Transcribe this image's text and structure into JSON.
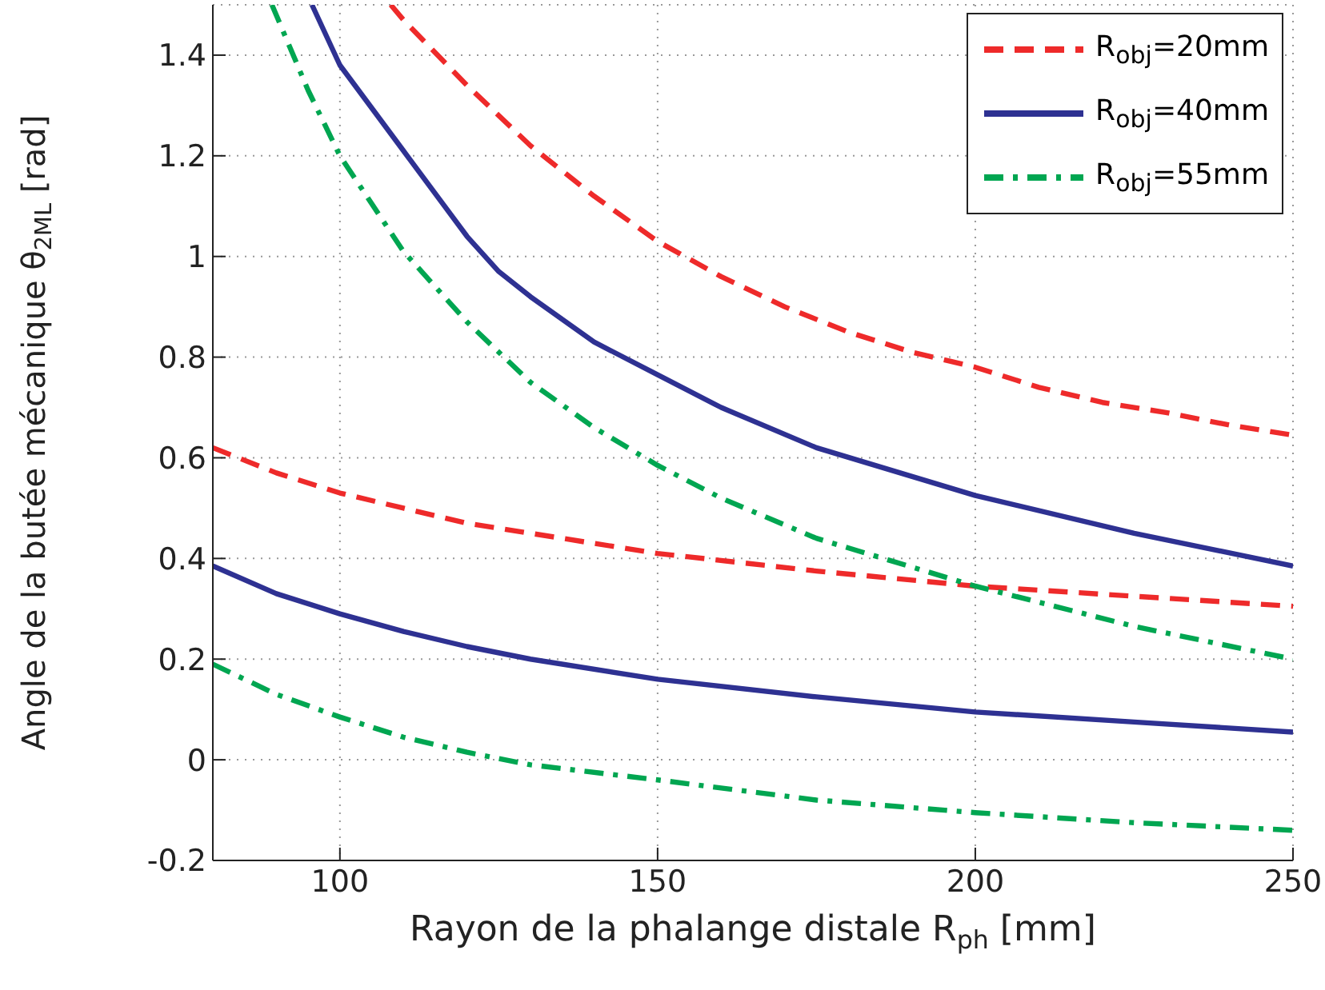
{
  "chart_data": {
    "type": "line",
    "xlabel": "Rayon de la phalange distale R$_{ph}$ [mm]",
    "ylabel": "Angle de la butée mécanique  θ$_{2ML}$ [rad]",
    "xlim": [
      80,
      250
    ],
    "xticks": [
      100,
      150,
      200,
      250
    ],
    "ylim": [
      -0.2,
      1.5
    ],
    "yticks": [
      -0.2,
      0,
      0.2,
      0.4,
      0.6,
      0.8,
      1,
      1.2,
      1.4
    ],
    "grid": true,
    "legend": "top right",
    "marker": "none",
    "series": [
      {
        "name": "R$_{obj}$=20mm",
        "color": "#ee2a2a",
        "line_style": "dashed",
        "x": [
          108,
          110,
          120,
          130,
          140,
          150,
          160,
          170,
          180,
          190,
          200,
          210,
          220,
          230,
          240,
          250
        ],
        "values": [
          1.5,
          1.47,
          1.34,
          1.22,
          1.12,
          1.03,
          0.96,
          0.9,
          0.85,
          0.81,
          0.78,
          0.74,
          0.71,
          0.69,
          0.665,
          0.645
        ]
      },
      {
        "color": "#ee2a2a",
        "line_style": "dashed",
        "x": [
          80,
          90,
          100,
          110,
          120,
          130,
          140,
          150,
          175,
          200,
          225,
          250
        ],
        "values": [
          0.62,
          0.57,
          0.53,
          0.5,
          0.47,
          0.45,
          0.43,
          0.41,
          0.375,
          0.345,
          0.325,
          0.305
        ]
      },
      {
        "name": "R$_{obj}$=40mm",
        "color": "#2e3192",
        "line_style": "solid",
        "x": [
          95.6,
          100,
          110,
          120,
          125,
          130,
          140,
          150,
          160,
          175,
          200,
          225,
          250
        ],
        "values": [
          1.5,
          1.38,
          1.21,
          1.04,
          0.97,
          0.92,
          0.83,
          0.765,
          0.7,
          0.62,
          0.525,
          0.45,
          0.385
        ]
      },
      {
        "color": "#2e3192",
        "line_style": "solid",
        "x": [
          80,
          90,
          100,
          110,
          120,
          130,
          150,
          175,
          200,
          225,
          250
        ],
        "values": [
          0.385,
          0.33,
          0.29,
          0.255,
          0.225,
          0.2,
          0.16,
          0.125,
          0.095,
          0.075,
          0.055
        ]
      },
      {
        "name": "R$_{obj}$=55mm",
        "color": "#00a651",
        "line_style": "dashdot",
        "x": [
          89.3,
          95,
          100,
          110,
          120,
          130,
          140,
          150,
          160,
          175,
          200,
          225,
          250
        ],
        "values": [
          1.5,
          1.33,
          1.2,
          1.01,
          0.87,
          0.75,
          0.66,
          0.585,
          0.52,
          0.44,
          0.345,
          0.265,
          0.2
        ]
      },
      {
        "color": "#00a651",
        "line_style": "dashdot",
        "x": [
          80,
          90,
          100,
          110,
          120,
          130,
          150,
          175,
          200,
          225,
          250
        ],
        "values": [
          0.19,
          0.13,
          0.085,
          0.045,
          0.015,
          -0.01,
          -0.04,
          -0.08,
          -0.105,
          -0.125,
          -0.14
        ]
      }
    ]
  }
}
